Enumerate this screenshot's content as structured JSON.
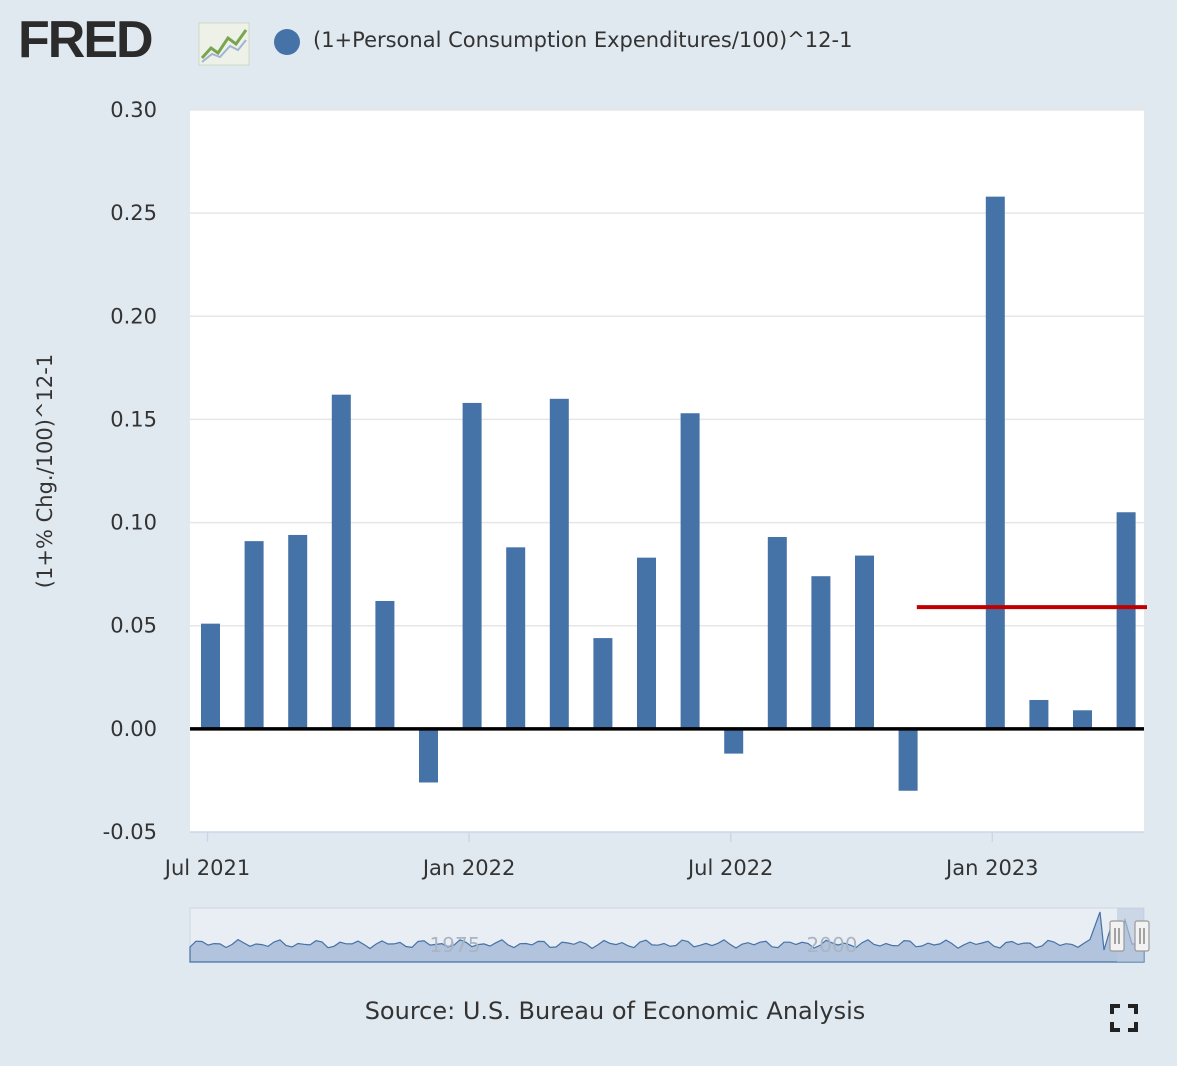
{
  "header": {
    "logo": "FRED",
    "legend_label": "(1+Personal Consumption Expenditures/100)^12-1",
    "series_color": "#4572a7",
    "logo_icon": "trend-line-icon"
  },
  "footer": {
    "source": "Source: U.S. Bureau of Economic Analysis",
    "fullscreen_icon": "fullscreen-icon"
  },
  "colors": {
    "bar": "#4572a7",
    "zero_line": "#000000",
    "reference_line": "#c00000",
    "plot_background": "#ffffff",
    "grid": "#e6e6e6",
    "navigator_fill": "#9fb4d4",
    "navigator_line": "#4572a7"
  },
  "navigator": {
    "labels": [
      "1975",
      "2000"
    ]
  },
  "chart_data": {
    "type": "bar",
    "title": "",
    "xlabel": "",
    "ylabel": "(1+% Chg./100)^12-1",
    "ylim": [
      -0.05,
      0.3
    ],
    "yticks": [
      -0.05,
      0.0,
      0.05,
      0.1,
      0.15,
      0.2,
      0.25,
      0.3
    ],
    "ytick_labels": [
      "-0.05",
      "0.00",
      "0.05",
      "0.10",
      "0.15",
      "0.20",
      "0.25",
      "0.30"
    ],
    "xtick_labels": [
      "Jul 2021",
      "Jan 2022",
      "Jul 2022",
      "Jan 2023"
    ],
    "xtick_category_index": [
      0,
      6,
      12,
      18
    ],
    "categories": [
      "2021-07",
      "2021-08",
      "2021-09",
      "2021-10",
      "2021-11",
      "2021-12",
      "2022-01",
      "2022-02",
      "2022-03",
      "2022-04",
      "2022-05",
      "2022-06",
      "2022-07",
      "2022-08",
      "2022-09",
      "2022-10",
      "2022-11",
      "2022-12",
      "2023-01",
      "2023-02",
      "2023-03",
      "2023-04"
    ],
    "series": [
      {
        "name": "(1+Personal Consumption Expenditures/100)^12-1",
        "values": [
          0.051,
          0.091,
          0.094,
          0.162,
          0.062,
          -0.026,
          0.158,
          0.088,
          0.16,
          0.044,
          0.083,
          0.153,
          -0.012,
          0.093,
          0.074,
          0.084,
          -0.03,
          0.0,
          0.258,
          0.014,
          0.009,
          0.105
        ]
      }
    ],
    "reference_line": {
      "value": 0.059,
      "start_category_index": 16.2
    },
    "zero_line": 0.0
  }
}
